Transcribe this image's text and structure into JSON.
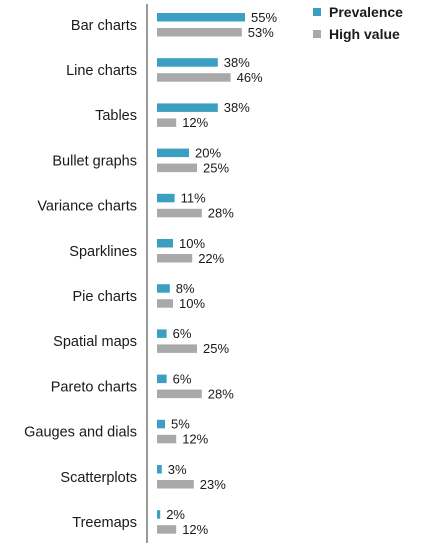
{
  "chart_data": {
    "type": "bar",
    "orientation": "horizontal",
    "title": "",
    "xlabel": "",
    "ylabel": "",
    "xlim": [
      0,
      100
    ],
    "grid": false,
    "legend_position": "top-right",
    "categories": [
      "Bar charts",
      "Line charts",
      "Tables",
      "Bullet graphs",
      "Variance charts",
      "Sparklines",
      "Pie charts",
      "Spatial maps",
      "Pareto charts",
      "Gauges and dials",
      "Scatterplots",
      "Treemaps"
    ],
    "series": [
      {
        "name": "Prevalence",
        "color": "#3a9fc0",
        "values": [
          55,
          38,
          38,
          20,
          11,
          10,
          8,
          6,
          6,
          5,
          3,
          2
        ],
        "labels": [
          "55%",
          "38%",
          "38%",
          "20%",
          "11%",
          "10%",
          "8%",
          "6%",
          "6%",
          "5%",
          "3%",
          "2%"
        ]
      },
      {
        "name": "High value",
        "color": "#a9a9a9",
        "values": [
          53,
          46,
          12,
          25,
          28,
          22,
          10,
          25,
          28,
          12,
          23,
          12
        ],
        "labels": [
          "53%",
          "46%",
          "12%",
          "25%",
          "28%",
          "22%",
          "10%",
          "25%",
          "28%",
          "12%",
          "23%",
          "12%"
        ]
      }
    ]
  }
}
